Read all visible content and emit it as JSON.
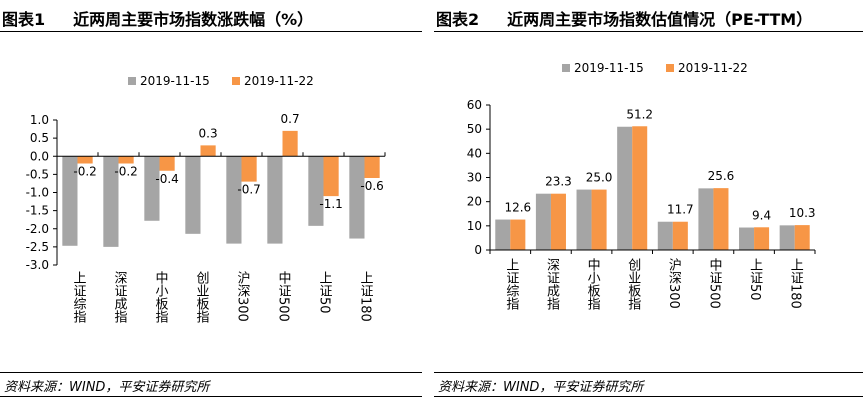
{
  "chart_data": [
    {
      "type": "bar",
      "title_num": "图表1",
      "title": "近两周主要市场指数涨跌幅（%）",
      "categories": [
        "上证综指",
        "深证成指",
        "中小板指",
        "创业板指",
        "沪深300",
        "中证500",
        "上证50",
        "上证180"
      ],
      "series": [
        {
          "name": "2019-11-15",
          "color": "#A5A5A5",
          "values": [
            -2.47,
            -2.5,
            -1.78,
            -2.14,
            -2.41,
            -2.41,
            -1.92,
            -2.27
          ],
          "labels": false
        },
        {
          "name": "2019-11-22",
          "color": "#F79646",
          "values": [
            -0.2,
            -0.2,
            -0.4,
            0.3,
            -0.7,
            0.7,
            -1.1,
            -0.6
          ],
          "labels": true
        }
      ],
      "ylim": [
        -3.0,
        1.0
      ],
      "yticks": [
        "1.0",
        "0.5",
        "0.0",
        "-0.5",
        "-1.0",
        "-1.5",
        "-2.0",
        "-2.5",
        "-3.0"
      ],
      "legend": "top",
      "grid": false,
      "source": "资料来源：WIND，平安证券研究所"
    },
    {
      "type": "bar",
      "title_num": "图表2",
      "title": "近两周主要市场指数估值情况（PE-TTM）",
      "categories": [
        "上证综指",
        "深证成指",
        "中小板指",
        "创业板指",
        "沪深300",
        "中证500",
        "上证50",
        "上证180"
      ],
      "series": [
        {
          "name": "2019-11-15",
          "color": "#A5A5A5",
          "values": [
            12.6,
            23.3,
            25.0,
            51.0,
            11.7,
            25.5,
            9.3,
            10.2
          ],
          "labels": false
        },
        {
          "name": "2019-11-22",
          "color": "#F79646",
          "values": [
            12.6,
            23.3,
            25.0,
            51.2,
            11.7,
            25.6,
            9.4,
            10.3
          ],
          "labels": true
        }
      ],
      "ylim": [
        0,
        60
      ],
      "yticks": [
        "60",
        "50",
        "40",
        "30",
        "20",
        "10",
        "0"
      ],
      "legend": "top",
      "grid": false,
      "source": "资料来源：WIND，平安证券研究所"
    }
  ]
}
